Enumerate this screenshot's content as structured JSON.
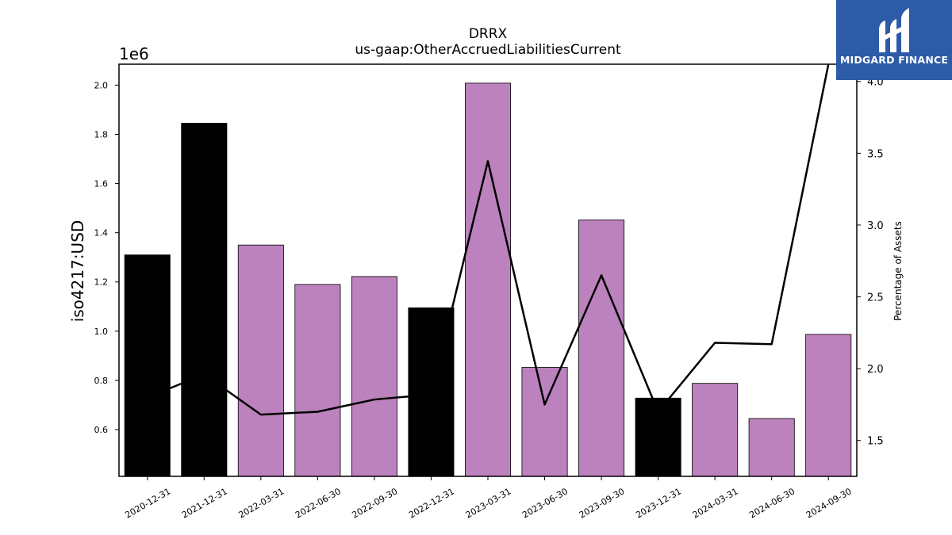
{
  "chart_data": {
    "type": "bar",
    "title": "DRRX",
    "subtitle": "us-gaap:OtherAccruedLiabilitiesCurrent",
    "ylabel": "iso4217:USD",
    "y2label": "Percentage of Assets",
    "y_scale_label": "1e6",
    "categories": [
      "2020-12-31",
      "2021-12-31",
      "2022-03-31",
      "2022-06-30",
      "2022-09-30",
      "2022-12-31",
      "2023-03-31",
      "2023-06-30",
      "2023-09-30",
      "2023-12-31",
      "2024-03-31",
      "2024-06-30",
      "2024-09-30"
    ],
    "values": [
      1.31,
      1.845,
      1.35,
      1.19,
      1.222,
      1.095,
      2.008,
      0.853,
      1.452,
      0.728,
      0.788,
      0.645,
      0.987
    ],
    "bar_colors": [
      "#000000",
      "#000000",
      "#bc82bd",
      "#bc82bd",
      "#bc82bd",
      "#000000",
      "#bc82bd",
      "#bc82bd",
      "#bc82bd",
      "#000000",
      "#bc82bd",
      "#bc82bd",
      "#bc82bd"
    ],
    "ylim": [
      0.41,
      2.085
    ],
    "yticks": [
      "0.6",
      "0.8",
      "1.0",
      "1.2",
      "1.4",
      "1.6",
      "1.8",
      "2.0"
    ],
    "line": {
      "values": [
        1.8,
        1.96,
        1.68,
        1.7,
        1.785,
        1.82,
        3.445,
        1.75,
        2.65,
        1.7,
        2.18,
        2.17,
        4.12
      ],
      "color": "#000000"
    },
    "y2lim": [
      1.25,
      4.12
    ],
    "y2ticks": [
      "1.5",
      "2.0",
      "2.5",
      "3.0",
      "3.5",
      "4.0"
    ],
    "grid": false
  },
  "logo": {
    "text": "MIDGARD FINANCE",
    "color": "#2d5ba8"
  }
}
